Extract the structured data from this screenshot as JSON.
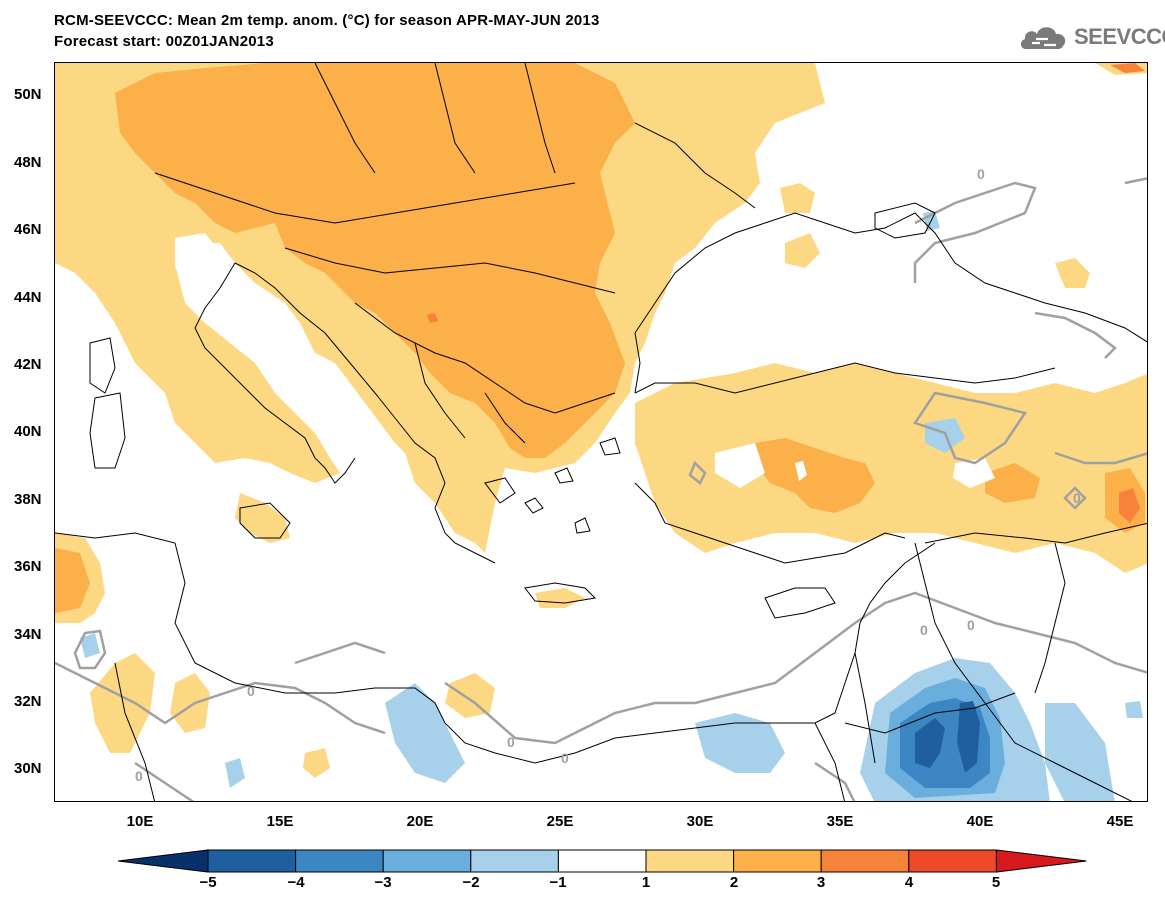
{
  "header": {
    "title": "RCM-SEEVCCC: Mean 2m temp. anom. (°C) for season APR-MAY-JUN 2013",
    "subtitle": "Forecast start: 00Z01JAN2013",
    "logo_text": "SEEVCCC",
    "logo_icon": "cloud-icon"
  },
  "map": {
    "projection": "lat-lon",
    "lon_range": [
      7,
      46
    ],
    "lat_range": [
      29,
      51
    ],
    "lat_ticks": [
      "50N",
      "48N",
      "46N",
      "44N",
      "42N",
      "40N",
      "38N",
      "36N",
      "34N",
      "32N",
      "30N"
    ],
    "lon_ticks": [
      "10E",
      "15E",
      "20E",
      "25E",
      "30E",
      "35E",
      "40E",
      "45E"
    ],
    "contour_labels": [
      "0",
      "0",
      "0",
      "0",
      "0",
      "0",
      "0",
      "0"
    ]
  },
  "colorbar": {
    "levels": [
      "−5",
      "−4",
      "−3",
      "−2",
      "−1",
      "1",
      "2",
      "3",
      "4",
      "5"
    ],
    "colors": [
      "#08306b",
      "#1f5fa0",
      "#3c86c3",
      "#6aaede",
      "#a7d0ea",
      "#ffffff",
      "#fdd883",
      "#fbb04a",
      "#f7823a",
      "#ee4a2a",
      "#d7191c"
    ]
  },
  "legend_colors": {
    "anomaly_1_2": "#fdd883",
    "anomaly_2_3": "#fbb04a",
    "anomaly_3_4": "#f7823a",
    "anomaly_neg_1_2": "#a7d0ea",
    "anomaly_neg_2_3": "#6aaede",
    "anomaly_neg_3_4": "#3c86c3",
    "anomaly_neg_4_5": "#1f5fa0",
    "contour_zero": "#a0a0a0",
    "borders": "#000000"
  }
}
